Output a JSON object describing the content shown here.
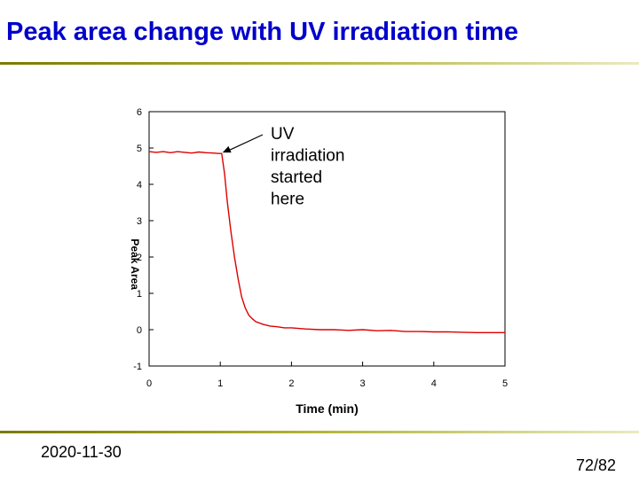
{
  "slide": {
    "title": "Peak area change with UV irradiation time",
    "date": "2020-11-30",
    "page": "72/82"
  },
  "colors": {
    "title": "#0000cc",
    "series": "#dd0000",
    "rule": "#9a9a20"
  },
  "chart_data": {
    "type": "line",
    "xlabel": "Time (min)",
    "ylabel": "Peak Area",
    "xlim": [
      0,
      5
    ],
    "ylim": [
      -1,
      6
    ],
    "xticks": [
      "0",
      "1",
      "2",
      "3",
      "4",
      "5"
    ],
    "yticks": [
      "-1",
      "0",
      "1",
      "2",
      "3",
      "4",
      "5",
      "6"
    ],
    "grid": false,
    "legend": "none",
    "annotation": {
      "text_lines": [
        "UV",
        "irradiation",
        "started",
        "here"
      ],
      "points_to": [
        1.02,
        4.85
      ]
    },
    "series": [
      {
        "color": "#dd0000",
        "x": [
          0,
          0.1,
          0.2,
          0.3,
          0.4,
          0.5,
          0.6,
          0.7,
          0.8,
          0.9,
          0.98,
          1.02,
          1.06,
          1.1,
          1.15,
          1.2,
          1.25,
          1.3,
          1.35,
          1.4,
          1.45,
          1.5,
          1.6,
          1.7,
          1.8,
          1.9,
          2.0,
          2.2,
          2.4,
          2.6,
          2.8,
          3.0,
          3.2,
          3.4,
          3.6,
          3.8,
          4.0,
          4.2,
          4.4,
          4.6,
          4.8,
          5.0
        ],
        "y": [
          4.9,
          4.88,
          4.9,
          4.87,
          4.9,
          4.88,
          4.86,
          4.89,
          4.87,
          4.86,
          4.85,
          4.85,
          4.3,
          3.5,
          2.7,
          2.0,
          1.4,
          0.9,
          0.6,
          0.4,
          0.3,
          0.22,
          0.15,
          0.1,
          0.08,
          0.05,
          0.05,
          0.02,
          0.0,
          0.0,
          -0.02,
          0.0,
          -0.03,
          -0.02,
          -0.05,
          -0.05,
          -0.06,
          -0.06,
          -0.07,
          -0.08,
          -0.08,
          -0.08
        ]
      }
    ]
  }
}
